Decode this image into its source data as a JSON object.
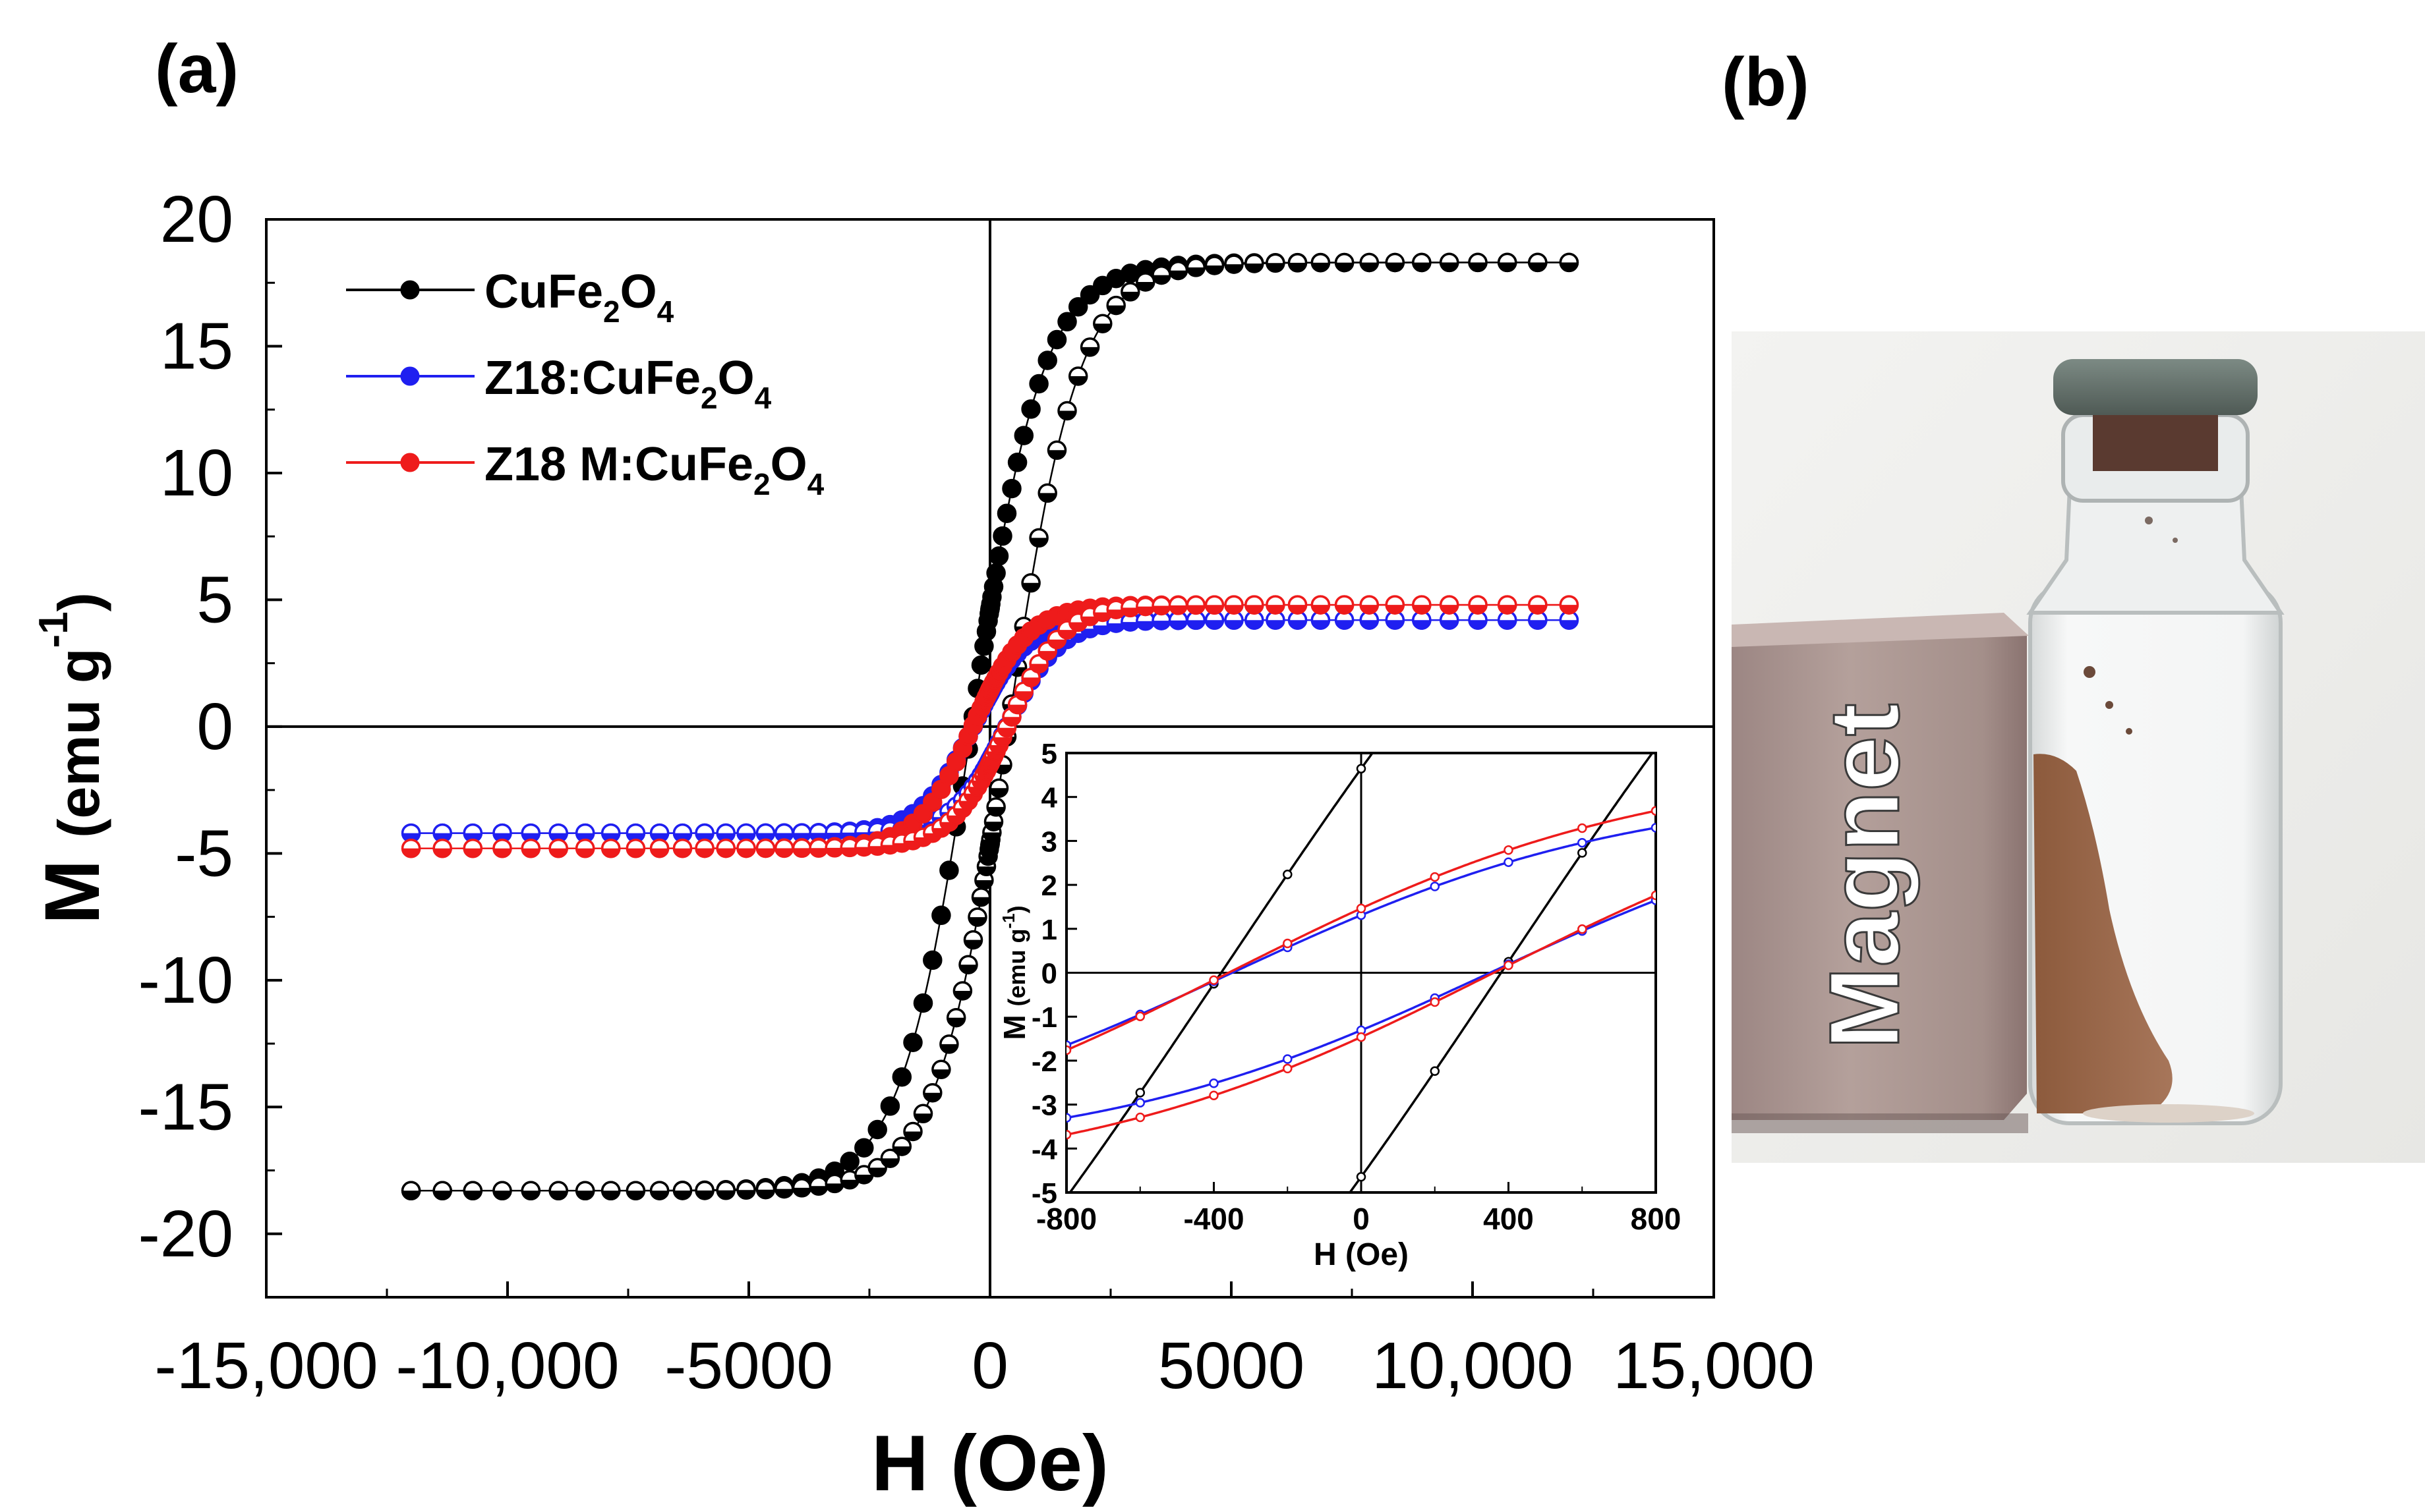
{
  "panels": {
    "a": "(a)",
    "b": "(b)"
  },
  "photo": {
    "magnet_label": "Magnet"
  },
  "colors": {
    "CuFe2O4": "#000000",
    "Z18:CuFe2O4": "#1f1ff0",
    "Z18 M:CuFe2O4": "#ee1b1b"
  },
  "chart_data": [
    {
      "type": "line",
      "title": "",
      "xlabel": "H (Oe)",
      "ylabel": "M (emu g-1)",
      "ylabel_parts": {
        "main": "M",
        "unit": "(emu g",
        "sup": "-1",
        "close": ")"
      },
      "xlim": [
        -15000,
        15000
      ],
      "ylim": [
        -22.5,
        20
      ],
      "xticks": [
        -15000,
        -10000,
        -5000,
        0,
        5000,
        10000,
        15000
      ],
      "xtick_labels": [
        "-15,000",
        "-10,000",
        "-5000",
        "0",
        "5000",
        "10,000",
        "15,000"
      ],
      "yticks": [
        -20,
        -15,
        -10,
        -5,
        0,
        5,
        10,
        15,
        20
      ],
      "ytick_labels": [
        "-20",
        "-15",
        "-10",
        "-5",
        "0",
        "5",
        "10",
        "15",
        "20"
      ],
      "legend_position": "top-left",
      "series": [
        {
          "name": "CuFe2O4",
          "legend": {
            "base": "CuFe",
            "s1": "2",
            "mid": "O",
            "s2": "4"
          },
          "Ms": 18.3,
          "Hc": 380,
          "Mr": 4.8,
          "H0": 1700,
          "hmax": 12000
        },
        {
          "name": "Z18:CuFe2O4",
          "legend": {
            "base": "Z18:CuFe",
            "s1": "2",
            "mid": "O",
            "s2": "4"
          },
          "Ms": 4.2,
          "Hc": 350,
          "Mr": 1.3,
          "H0": 1050,
          "hmax": 12000
        },
        {
          "name": "Z18 M:CuFe2O4",
          "legend": {
            "base": "Z18 M:CuFe",
            "s1": "2",
            "mid": "O",
            "s2": "4"
          },
          "Ms": 4.8,
          "Hc": 360,
          "Mr": 1.45,
          "H0": 1100,
          "hmax": 12000
        }
      ]
    },
    {
      "type": "line",
      "title": "inset",
      "xlabel": "H (Oe)",
      "ylabel": "M (emu g-1)",
      "ylabel_parts": {
        "main": "M",
        "unit": "(emu g",
        "sup": "-1",
        "close": ")"
      },
      "xlim": [
        -800,
        800
      ],
      "ylim": [
        -5,
        5
      ],
      "xticks": [
        -800,
        -400,
        0,
        400,
        800
      ],
      "xtick_labels": [
        "-800",
        "-400",
        "0",
        "400",
        "800"
      ],
      "yticks": [
        -5,
        -4,
        -3,
        -2,
        -1,
        0,
        1,
        2,
        3,
        4,
        5
      ],
      "ytick_labels": [
        "-5",
        "-4",
        "-3",
        "-2",
        "-1",
        "0",
        "1",
        "2",
        "3",
        "4",
        "5"
      ],
      "series": [
        "CuFe2O4",
        "Z18:CuFe2O4",
        "Z18 M:CuFe2O4"
      ]
    }
  ]
}
